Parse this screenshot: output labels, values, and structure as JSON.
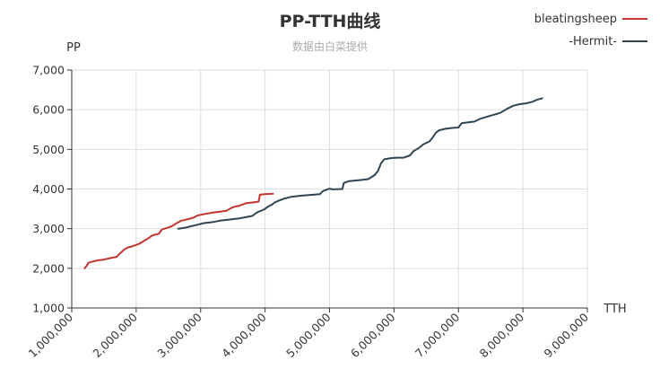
{
  "chart_data": {
    "type": "line",
    "title": "PP-TTH曲线",
    "subtitle": "数据由白菜提供",
    "xlabel": "TTH",
    "ylabel": "PP",
    "xlim": [
      1000000,
      9000000
    ],
    "ylim": [
      1000,
      7000
    ],
    "xticks": [
      1000000,
      2000000,
      3000000,
      4000000,
      5000000,
      6000000,
      7000000,
      8000000,
      9000000
    ],
    "yticks": [
      1000,
      2000,
      3000,
      4000,
      5000,
      6000,
      7000
    ],
    "xtick_labels": [
      "1,000,000",
      "2,000,000",
      "3,000,000",
      "4,000,000",
      "5,000,000",
      "6,000,000",
      "7,000,000",
      "8,000,000",
      "9,000,000"
    ],
    "ytick_labels": [
      "1,000",
      "2,000",
      "3,000",
      "4,000",
      "5,000",
      "6,000",
      "7,000"
    ],
    "grid": true,
    "legend_position": "top-right",
    "series": [
      {
        "name": "bleatingsheep",
        "color": "#c23531",
        "points": [
          [
            1200000,
            2000
          ],
          [
            1230000,
            2060
          ],
          [
            1260000,
            2140
          ],
          [
            1300000,
            2160
          ],
          [
            1400000,
            2200
          ],
          [
            1500000,
            2220
          ],
          [
            1600000,
            2260
          ],
          [
            1700000,
            2290
          ],
          [
            1750000,
            2380
          ],
          [
            1820000,
            2480
          ],
          [
            1880000,
            2530
          ],
          [
            1950000,
            2560
          ],
          [
            2050000,
            2620
          ],
          [
            2150000,
            2720
          ],
          [
            2200000,
            2770
          ],
          [
            2250000,
            2830
          ],
          [
            2350000,
            2870
          ],
          [
            2400000,
            2980
          ],
          [
            2480000,
            3020
          ],
          [
            2550000,
            3060
          ],
          [
            2620000,
            3130
          ],
          [
            2700000,
            3200
          ],
          [
            2800000,
            3240
          ],
          [
            2880000,
            3270
          ],
          [
            2950000,
            3330
          ],
          [
            3000000,
            3350
          ],
          [
            3100000,
            3380
          ],
          [
            3200000,
            3410
          ],
          [
            3300000,
            3430
          ],
          [
            3400000,
            3450
          ],
          [
            3450000,
            3500
          ],
          [
            3500000,
            3540
          ],
          [
            3550000,
            3560
          ],
          [
            3600000,
            3580
          ],
          [
            3700000,
            3640
          ],
          [
            3800000,
            3660
          ],
          [
            3900000,
            3680
          ],
          [
            3920000,
            3860
          ],
          [
            4000000,
            3870
          ],
          [
            4120000,
            3880
          ]
        ]
      },
      {
        "name": "-Hermit-",
        "color": "#2f4554",
        "points": [
          [
            2650000,
            3000
          ],
          [
            2750000,
            3020
          ],
          [
            2850000,
            3060
          ],
          [
            2950000,
            3100
          ],
          [
            3050000,
            3140
          ],
          [
            3200000,
            3170
          ],
          [
            3300000,
            3200
          ],
          [
            3450000,
            3230
          ],
          [
            3600000,
            3260
          ],
          [
            3700000,
            3290
          ],
          [
            3800000,
            3320
          ],
          [
            3850000,
            3380
          ],
          [
            3900000,
            3430
          ],
          [
            3950000,
            3460
          ],
          [
            4000000,
            3500
          ],
          [
            4050000,
            3560
          ],
          [
            4100000,
            3600
          ],
          [
            4150000,
            3660
          ],
          [
            4200000,
            3700
          ],
          [
            4300000,
            3760
          ],
          [
            4400000,
            3800
          ],
          [
            4550000,
            3830
          ],
          [
            4700000,
            3850
          ],
          [
            4850000,
            3870
          ],
          [
            4900000,
            3950
          ],
          [
            4950000,
            3980
          ],
          [
            5000000,
            4010
          ],
          [
            5050000,
            3990
          ],
          [
            5200000,
            4000
          ],
          [
            5220000,
            4150
          ],
          [
            5300000,
            4200
          ],
          [
            5450000,
            4220
          ],
          [
            5600000,
            4250
          ],
          [
            5700000,
            4350
          ],
          [
            5750000,
            4450
          ],
          [
            5800000,
            4650
          ],
          [
            5850000,
            4750
          ],
          [
            5950000,
            4780
          ],
          [
            6050000,
            4790
          ],
          [
            6150000,
            4790
          ],
          [
            6250000,
            4850
          ],
          [
            6300000,
            4950
          ],
          [
            6350000,
            5000
          ],
          [
            6400000,
            5050
          ],
          [
            6450000,
            5120
          ],
          [
            6550000,
            5200
          ],
          [
            6600000,
            5300
          ],
          [
            6650000,
            5420
          ],
          [
            6700000,
            5480
          ],
          [
            6800000,
            5520
          ],
          [
            6900000,
            5540
          ],
          [
            7000000,
            5550
          ],
          [
            7050000,
            5660
          ],
          [
            7150000,
            5680
          ],
          [
            7250000,
            5700
          ],
          [
            7350000,
            5780
          ],
          [
            7500000,
            5850
          ],
          [
            7650000,
            5920
          ],
          [
            7750000,
            6020
          ],
          [
            7850000,
            6100
          ],
          [
            7950000,
            6140
          ],
          [
            8050000,
            6160
          ],
          [
            8150000,
            6200
          ],
          [
            8220000,
            6250
          ],
          [
            8300000,
            6290
          ]
        ]
      }
    ]
  }
}
